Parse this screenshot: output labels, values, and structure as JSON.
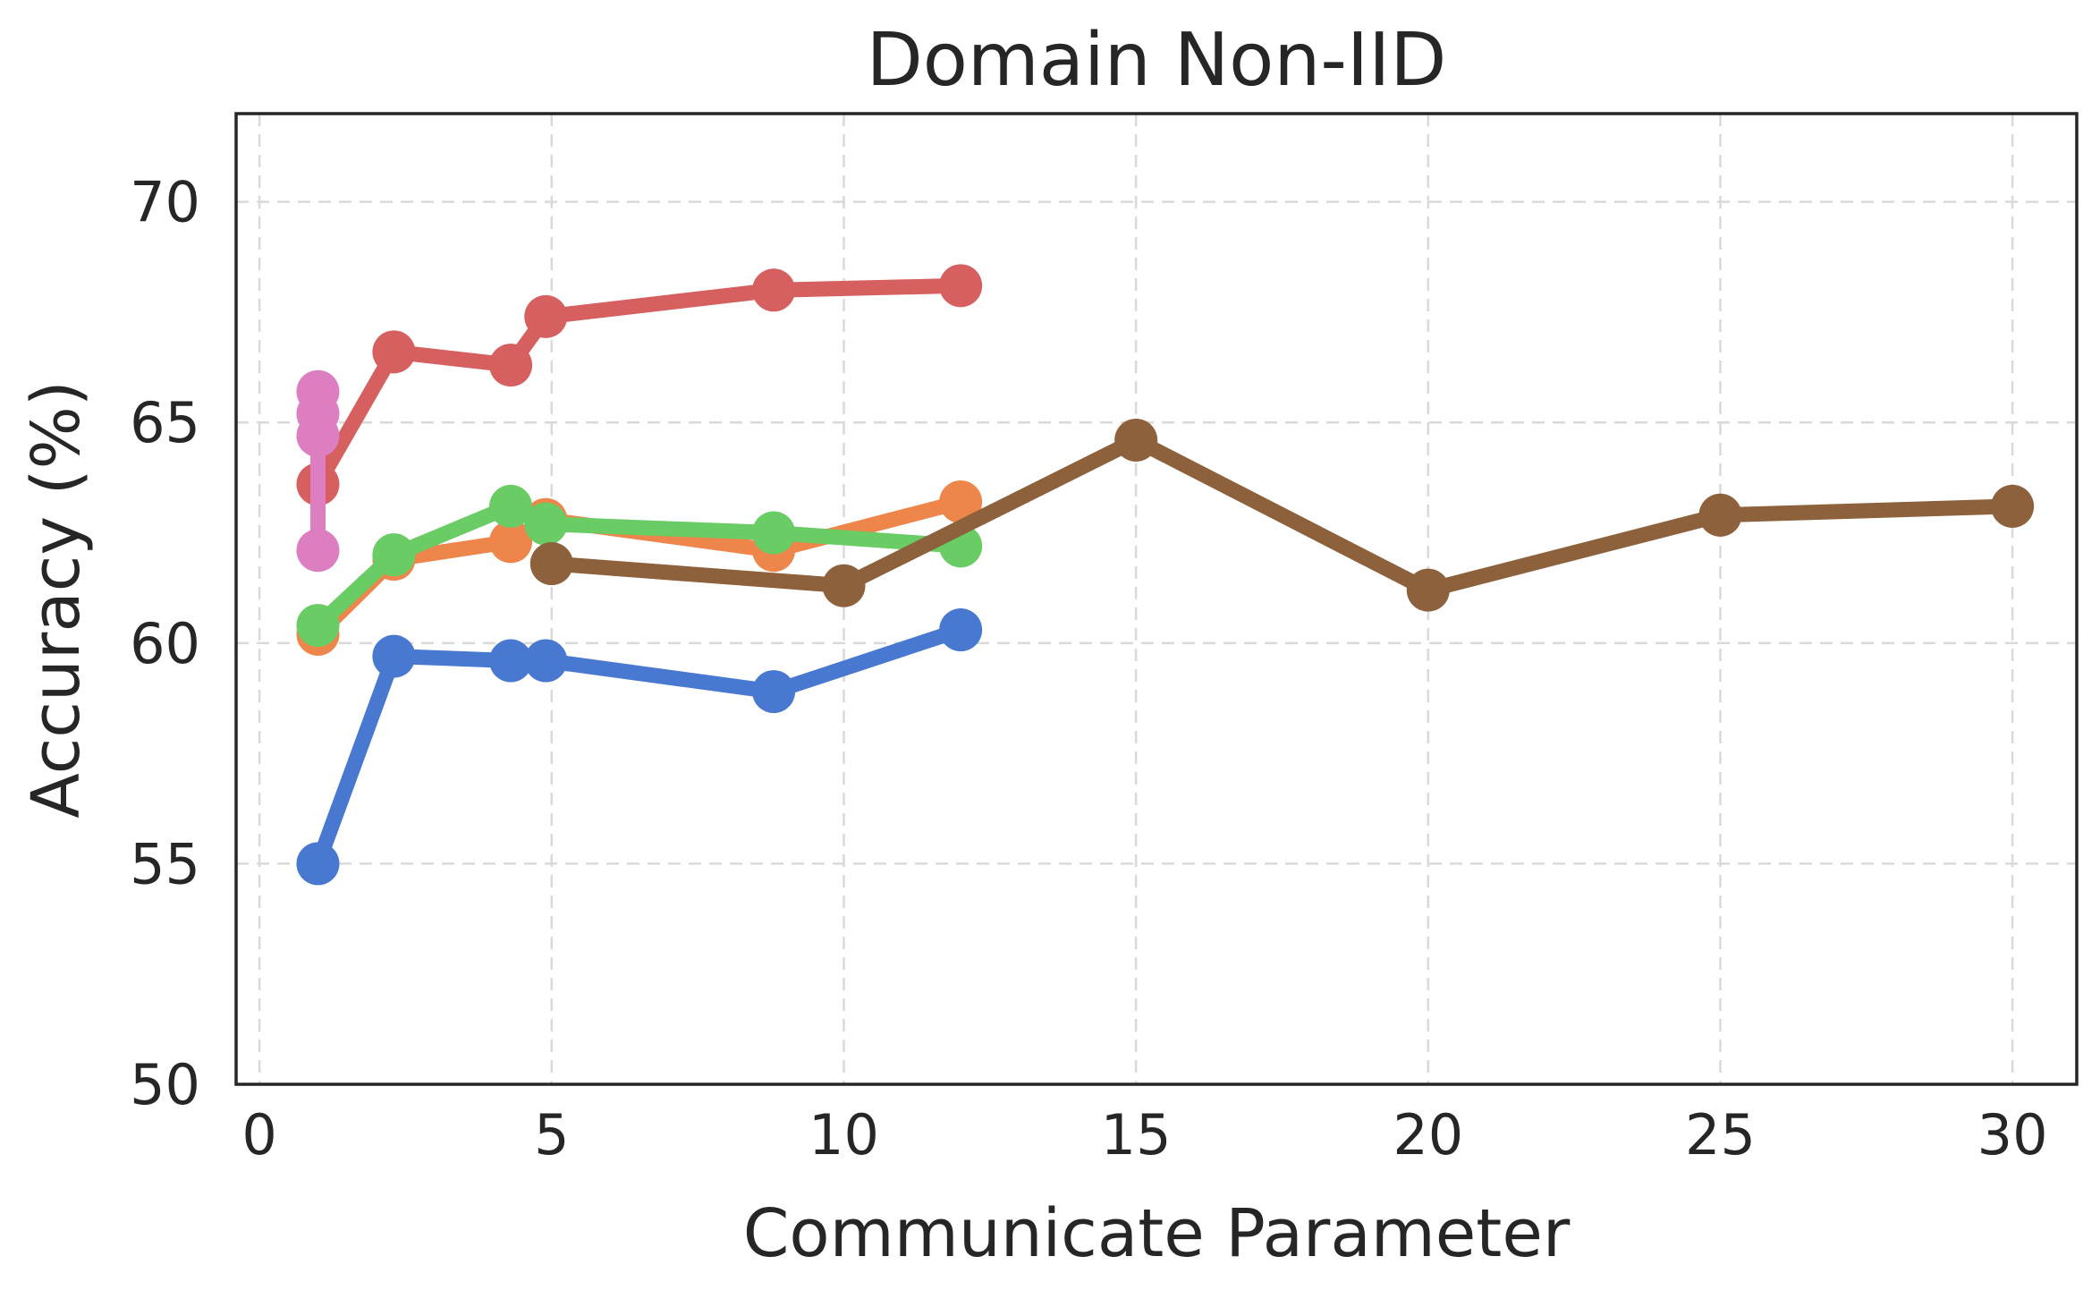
{
  "chart_data": {
    "type": "line",
    "title": "Domain Non-IID",
    "xlabel": "Communicate Parameter",
    "ylabel": "Accuracy (%)",
    "xlim": [
      -0.4,
      31.1
    ],
    "ylim": [
      50,
      72
    ],
    "xticks": [
      0,
      5,
      10,
      15,
      20,
      25,
      30
    ],
    "yticks": [
      50,
      55,
      60,
      65,
      70
    ],
    "grid": true,
    "legend": "none",
    "series": [
      {
        "color": "#4878d0",
        "x": [
          1,
          2.3,
          4.3,
          4.9,
          8.8,
          12
        ],
        "y": [
          55.0,
          59.7,
          59.6,
          59.6,
          58.9,
          60.3
        ]
      },
      {
        "color": "#ee854a",
        "x": [
          1,
          2.3,
          4.3,
          4.9,
          8.8,
          12
        ],
        "y": [
          60.2,
          61.9,
          62.3,
          62.8,
          62.1,
          63.2
        ]
      },
      {
        "color": "#6acc64",
        "x": [
          1,
          2.3,
          4.3,
          4.9,
          8.8,
          12
        ],
        "y": [
          60.4,
          62.0,
          63.1,
          62.7,
          62.5,
          62.2
        ]
      },
      {
        "color": "#d65f5f",
        "x": [
          1,
          2.3,
          4.3,
          4.9,
          8.8,
          12
        ],
        "y": [
          63.6,
          66.6,
          66.3,
          67.4,
          68.0,
          68.1
        ]
      },
      {
        "color": "#8c613c",
        "x": [
          5,
          10,
          15,
          20,
          25,
          30
        ],
        "y": [
          61.8,
          61.3,
          64.6,
          61.2,
          62.9,
          63.1
        ]
      },
      {
        "color": "#dc7ec0",
        "x": [
          1,
          1,
          1,
          1
        ],
        "y": [
          62.1,
          64.7,
          65.2,
          65.7
        ]
      }
    ]
  }
}
